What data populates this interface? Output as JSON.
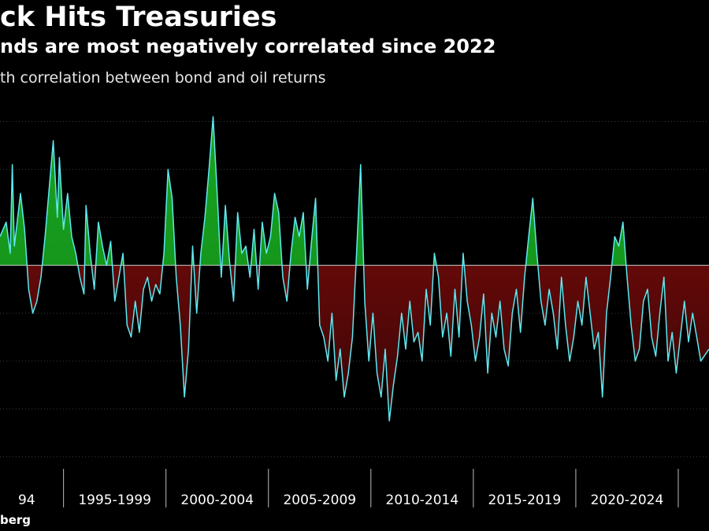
{
  "header": {
    "title": "ck Hits Treasuries",
    "subtitle": "nds are most negatively correlated since 2022",
    "ylabel": "th correlation between bond and oil returns"
  },
  "footer": {
    "source": "berg"
  },
  "colors": {
    "background": "#000000",
    "line": "#5ee8f0",
    "positive_fill": "#0f8a16",
    "negative_fill": "#8c0d0d",
    "grid": "#3a3a3a",
    "axis": "#bdbdbd",
    "text": "#ffffff"
  },
  "chart_data": {
    "type": "area",
    "title": "ck Hits Treasuries",
    "subtitle": "nds are most negatively correlated since 2022",
    "ylabel": "th correlation between bond and oil returns",
    "xlabel": "",
    "categories": [
      "94",
      "1995-1999",
      "2000-2004",
      "2005-2009",
      "2010-2014",
      "2015-2019",
      "2020-2024"
    ],
    "xlim": [
      1991.9,
      2026.5
    ],
    "ylim": [
      -0.85,
      0.72
    ],
    "baseline": 0,
    "grid": true,
    "series": [
      {
        "name": "Correlation",
        "x": [
          1991.9,
          1992.2,
          1992.4,
          1992.5,
          1992.6,
          1992.9,
          1993.1,
          1993.3,
          1993.5,
          1993.7,
          1993.9,
          1994.1,
          1994.3,
          1994.5,
          1994.7,
          1994.8,
          1995.0,
          1995.2,
          1995.4,
          1995.6,
          1995.8,
          1996.0,
          1996.1,
          1996.3,
          1996.5,
          1996.7,
          1996.9,
          1997.1,
          1997.3,
          1997.5,
          1997.7,
          1997.9,
          1998.1,
          1998.3,
          1998.5,
          1998.7,
          1998.9,
          1999.1,
          1999.3,
          1999.5,
          1999.7,
          1999.9,
          2000.1,
          2000.3,
          2000.5,
          2000.7,
          2000.9,
          2001.1,
          2001.3,
          2001.5,
          2001.7,
          2001.9,
          2002.1,
          2002.3,
          2002.5,
          2002.7,
          2002.9,
          2003.1,
          2003.3,
          2003.5,
          2003.7,
          2003.9,
          2004.1,
          2004.3,
          2004.5,
          2004.7,
          2004.9,
          2005.1,
          2005.3,
          2005.5,
          2005.7,
          2005.9,
          2006.1,
          2006.3,
          2006.5,
          2006.7,
          2006.9,
          2007.1,
          2007.3,
          2007.5,
          2007.7,
          2007.9,
          2008.1,
          2008.3,
          2008.5,
          2008.7,
          2008.9,
          2009.1,
          2009.3,
          2009.5,
          2009.7,
          2009.9,
          2010.1,
          2010.3,
          2010.5,
          2010.7,
          2010.9,
          2011.1,
          2011.3,
          2011.5,
          2011.7,
          2011.9,
          2012.1,
          2012.3,
          2012.5,
          2012.7,
          2012.9,
          2013.1,
          2013.3,
          2013.5,
          2013.7,
          2013.9,
          2014.1,
          2014.3,
          2014.5,
          2014.7,
          2014.9,
          2015.1,
          2015.3,
          2015.5,
          2015.7,
          2015.9,
          2016.1,
          2016.3,
          2016.5,
          2016.7,
          2016.9,
          2017.1,
          2017.3,
          2017.5,
          2017.7,
          2017.9,
          2018.1,
          2018.3,
          2018.5,
          2018.7,
          2018.9,
          2019.1,
          2019.3,
          2019.5,
          2019.7,
          2019.9,
          2020.1,
          2020.3,
          2020.5,
          2020.7,
          2020.9,
          2021.1,
          2021.3,
          2021.5,
          2021.7,
          2021.9,
          2022.1,
          2022.3,
          2022.5,
          2022.7,
          2022.9,
          2023.1,
          2023.3,
          2023.5,
          2023.7,
          2023.9,
          2024.1,
          2024.3,
          2024.5,
          2024.7,
          2024.9,
          2025.1,
          2025.3,
          2025.5,
          2025.7,
          2025.9,
          2026.1,
          2026.5
        ],
        "values": [
          0.12,
          0.18,
          0.05,
          0.42,
          0.08,
          0.3,
          0.15,
          -0.1,
          -0.2,
          -0.15,
          -0.05,
          0.12,
          0.32,
          0.52,
          0.2,
          0.45,
          0.15,
          0.3,
          0.12,
          0.05,
          -0.05,
          -0.12,
          0.25,
          0.05,
          -0.1,
          0.18,
          0.08,
          0.0,
          0.1,
          -0.15,
          -0.05,
          0.05,
          -0.25,
          -0.3,
          -0.15,
          -0.28,
          -0.1,
          -0.05,
          -0.15,
          -0.08,
          -0.12,
          0.05,
          0.4,
          0.28,
          -0.05,
          -0.25,
          -0.55,
          -0.35,
          0.08,
          -0.2,
          0.05,
          0.2,
          0.4,
          0.62,
          0.3,
          -0.05,
          0.25,
          0.02,
          -0.15,
          0.22,
          0.05,
          0.08,
          -0.05,
          0.15,
          -0.1,
          0.18,
          0.05,
          0.12,
          0.3,
          0.22,
          -0.05,
          -0.15,
          0.05,
          0.2,
          0.12,
          0.22,
          -0.1,
          0.1,
          0.28,
          -0.25,
          -0.3,
          -0.4,
          -0.2,
          -0.48,
          -0.35,
          -0.55,
          -0.45,
          -0.3,
          0.05,
          0.42,
          -0.15,
          -0.4,
          -0.2,
          -0.45,
          -0.55,
          -0.35,
          -0.65,
          -0.5,
          -0.38,
          -0.2,
          -0.35,
          -0.15,
          -0.32,
          -0.28,
          -0.4,
          -0.1,
          -0.25,
          0.05,
          -0.05,
          -0.3,
          -0.2,
          -0.38,
          -0.1,
          -0.3,
          0.05,
          -0.15,
          -0.25,
          -0.4,
          -0.3,
          -0.12,
          -0.45,
          -0.2,
          -0.3,
          -0.15,
          -0.35,
          -0.42,
          -0.2,
          -0.1,
          -0.28,
          -0.05,
          0.12,
          0.28,
          0.05,
          -0.15,
          -0.25,
          -0.1,
          -0.2,
          -0.35,
          -0.05,
          -0.25,
          -0.4,
          -0.3,
          -0.15,
          -0.25,
          -0.05,
          -0.2,
          -0.35,
          -0.28,
          -0.55,
          -0.2,
          -0.05,
          0.12,
          0.08,
          0.18,
          -0.05,
          -0.25,
          -0.4,
          -0.35,
          -0.15,
          -0.1,
          -0.3,
          -0.38,
          -0.2,
          -0.05,
          -0.4,
          -0.28,
          -0.45,
          -0.3,
          -0.15,
          -0.32,
          -0.2,
          -0.3,
          -0.4,
          -0.35
        ]
      }
    ],
    "annotations": []
  }
}
